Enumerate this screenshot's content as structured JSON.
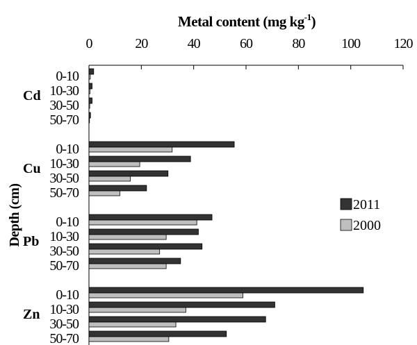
{
  "chart_data": {
    "type": "bar",
    "orientation": "horizontal",
    "title": "Metal content (mg kg-1)",
    "title_main": "Metal content (mg kg",
    "title_sup": "-1",
    "title_close": ")",
    "xlabel": "Metal content (mg kg-1)",
    "ylabel": "Depth (cm)",
    "xlim": [
      0,
      120
    ],
    "xticks": [
      "0",
      "20",
      "40",
      "60",
      "80",
      "100",
      "120"
    ],
    "x_axis_position": "top",
    "grid": false,
    "legend_position": "right",
    "depths": [
      "0-10",
      "10-30",
      "30-50",
      "50-70"
    ],
    "groups": [
      {
        "name": "Cd",
        "values_2011": [
          1.8,
          1.2,
          1.2,
          0.6
        ],
        "values_2000": [
          0.5,
          0.4,
          0.3,
          0.2
        ]
      },
      {
        "name": "Cu",
        "values_2011": [
          55.5,
          38.8,
          30.2,
          22.0
        ],
        "values_2000": [
          31.8,
          19.4,
          15.8,
          11.8
        ]
      },
      {
        "name": "Pb",
        "values_2011": [
          47.0,
          41.8,
          43.2,
          35.0
        ],
        "values_2000": [
          41.2,
          29.5,
          27.0,
          29.5
        ]
      },
      {
        "name": "Zn",
        "values_2011": [
          104.8,
          71.0,
          67.5,
          52.5
        ],
        "values_2000": [
          58.8,
          37.0,
          33.2,
          30.5
        ]
      }
    ],
    "series": [
      {
        "name": "2011",
        "color": "#333333"
      },
      {
        "name": "2000",
        "color": "#bfbfbf"
      }
    ]
  }
}
